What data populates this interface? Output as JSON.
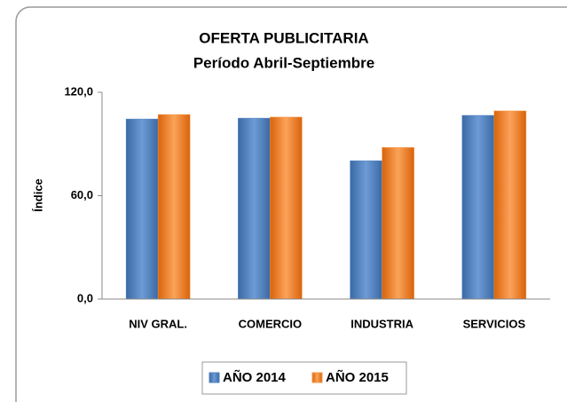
{
  "chart_data": {
    "type": "bar",
    "title": "OFERTA PUBLICITARIA",
    "subtitle": "Período Abril-Septiembre",
    "y_label": "Índice",
    "categories": [
      "NIV GRAL.",
      "COMERCIO",
      "INDUSTRIA",
      "SERVICIOS"
    ],
    "series": [
      {
        "name": "AÑO 2014",
        "color": "#4f81bd",
        "values": [
          104.5,
          105,
          80.3,
          106.6
        ]
      },
      {
        "name": "AÑO 2015",
        "color": "#f79646",
        "values": [
          107.1,
          105.6,
          88,
          109.2
        ]
      }
    ],
    "ylim": [
      0,
      120
    ],
    "yticks": [
      {
        "value": 0,
        "label": "0,0"
      },
      {
        "value": 60,
        "label": "60,0"
      },
      {
        "value": 120,
        "label": "120,0"
      }
    ],
    "grid": false,
    "legend": "bottom"
  }
}
